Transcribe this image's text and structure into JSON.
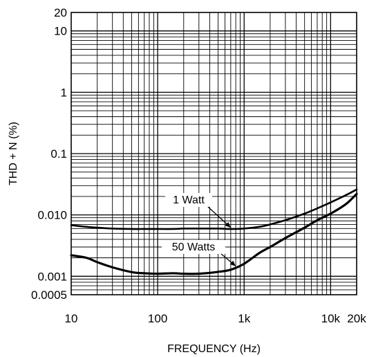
{
  "chart_data": {
    "type": "line",
    "title": "",
    "xlabel": "FREQUENCY (Hz)",
    "ylabel": "THD + N (%)",
    "x_scale": "log",
    "y_scale": "log",
    "xlim": [
      10,
      20000
    ],
    "ylim": [
      0.0005,
      20
    ],
    "grid": true,
    "x_ticks": [
      {
        "value": 10,
        "label": "10"
      },
      {
        "value": 100,
        "label": "100"
      },
      {
        "value": 1000,
        "label": "1k"
      },
      {
        "value": 10000,
        "label": "10k"
      },
      {
        "value": 20000,
        "label": "20k"
      }
    ],
    "y_ticks": [
      {
        "value": 20,
        "label": "20"
      },
      {
        "value": 10,
        "label": "10"
      },
      {
        "value": 1,
        "label": "1"
      },
      {
        "value": 0.1,
        "label": "0.1"
      },
      {
        "value": 0.01,
        "label": "0.010"
      },
      {
        "value": 0.001,
        "label": "0.001"
      },
      {
        "value": 0.0005,
        "label": "0.0005"
      }
    ],
    "series": [
      {
        "name": "1 Watt",
        "x": [
          10,
          15,
          20,
          30,
          50,
          70,
          100,
          150,
          200,
          300,
          500,
          700,
          1000,
          1500,
          2000,
          3000,
          5000,
          7000,
          10000,
          15000,
          20000
        ],
        "y": [
          0.0068,
          0.0064,
          0.0062,
          0.006,
          0.0059,
          0.0059,
          0.0059,
          0.0059,
          0.006,
          0.006,
          0.006,
          0.0059,
          0.006,
          0.0064,
          0.007,
          0.0082,
          0.0105,
          0.0128,
          0.016,
          0.021,
          0.026
        ]
      },
      {
        "name": "50 Watts",
        "x": [
          10,
          15,
          20,
          30,
          50,
          70,
          100,
          150,
          200,
          300,
          500,
          700,
          1000,
          1500,
          2000,
          3000,
          5000,
          7000,
          10000,
          15000,
          20000
        ],
        "y": [
          0.0022,
          0.002,
          0.0017,
          0.0014,
          0.00117,
          0.00112,
          0.0011,
          0.00112,
          0.0011,
          0.0011,
          0.00118,
          0.00128,
          0.0016,
          0.0024,
          0.003,
          0.0042,
          0.0062,
          0.0082,
          0.0105,
          0.015,
          0.022
        ]
      }
    ],
    "annotations": [
      {
        "text": "1 Watt",
        "series": 0,
        "point_x": 700
      },
      {
        "text": "50 Watts",
        "series": 1,
        "point_x": 800
      }
    ]
  }
}
